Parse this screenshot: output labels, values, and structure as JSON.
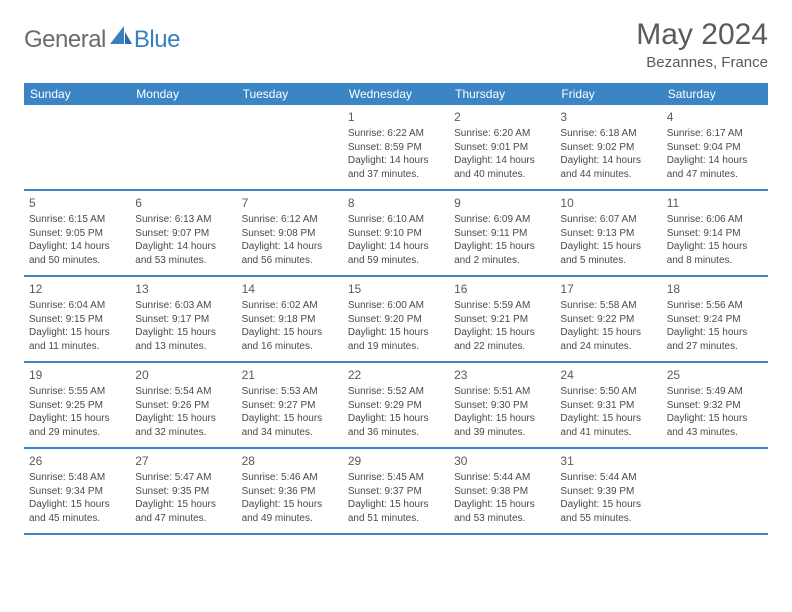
{
  "logo": {
    "general": "General",
    "blue": "Blue"
  },
  "title": "May 2024",
  "location": "Bezannes, France",
  "colors": {
    "header_bg": "#3b85c4",
    "header_text": "#ffffff",
    "divider": "#3b85c4",
    "body_text": "#4a4a4a",
    "title_text": "#5a5a5a",
    "logo_gray": "#6b6b6b",
    "logo_blue": "#3a7fbf"
  },
  "weekdays": [
    "Sunday",
    "Monday",
    "Tuesday",
    "Wednesday",
    "Thursday",
    "Friday",
    "Saturday"
  ],
  "weeks": [
    [
      {
        "n": "",
        "sr": "",
        "ss": "",
        "dl1": "",
        "dl2": ""
      },
      {
        "n": "",
        "sr": "",
        "ss": "",
        "dl1": "",
        "dl2": ""
      },
      {
        "n": "",
        "sr": "",
        "ss": "",
        "dl1": "",
        "dl2": ""
      },
      {
        "n": "1",
        "sr": "Sunrise: 6:22 AM",
        "ss": "Sunset: 8:59 PM",
        "dl1": "Daylight: 14 hours",
        "dl2": "and 37 minutes."
      },
      {
        "n": "2",
        "sr": "Sunrise: 6:20 AM",
        "ss": "Sunset: 9:01 PM",
        "dl1": "Daylight: 14 hours",
        "dl2": "and 40 minutes."
      },
      {
        "n": "3",
        "sr": "Sunrise: 6:18 AM",
        "ss": "Sunset: 9:02 PM",
        "dl1": "Daylight: 14 hours",
        "dl2": "and 44 minutes."
      },
      {
        "n": "4",
        "sr": "Sunrise: 6:17 AM",
        "ss": "Sunset: 9:04 PM",
        "dl1": "Daylight: 14 hours",
        "dl2": "and 47 minutes."
      }
    ],
    [
      {
        "n": "5",
        "sr": "Sunrise: 6:15 AM",
        "ss": "Sunset: 9:05 PM",
        "dl1": "Daylight: 14 hours",
        "dl2": "and 50 minutes."
      },
      {
        "n": "6",
        "sr": "Sunrise: 6:13 AM",
        "ss": "Sunset: 9:07 PM",
        "dl1": "Daylight: 14 hours",
        "dl2": "and 53 minutes."
      },
      {
        "n": "7",
        "sr": "Sunrise: 6:12 AM",
        "ss": "Sunset: 9:08 PM",
        "dl1": "Daylight: 14 hours",
        "dl2": "and 56 minutes."
      },
      {
        "n": "8",
        "sr": "Sunrise: 6:10 AM",
        "ss": "Sunset: 9:10 PM",
        "dl1": "Daylight: 14 hours",
        "dl2": "and 59 minutes."
      },
      {
        "n": "9",
        "sr": "Sunrise: 6:09 AM",
        "ss": "Sunset: 9:11 PM",
        "dl1": "Daylight: 15 hours",
        "dl2": "and 2 minutes."
      },
      {
        "n": "10",
        "sr": "Sunrise: 6:07 AM",
        "ss": "Sunset: 9:13 PM",
        "dl1": "Daylight: 15 hours",
        "dl2": "and 5 minutes."
      },
      {
        "n": "11",
        "sr": "Sunrise: 6:06 AM",
        "ss": "Sunset: 9:14 PM",
        "dl1": "Daylight: 15 hours",
        "dl2": "and 8 minutes."
      }
    ],
    [
      {
        "n": "12",
        "sr": "Sunrise: 6:04 AM",
        "ss": "Sunset: 9:15 PM",
        "dl1": "Daylight: 15 hours",
        "dl2": "and 11 minutes."
      },
      {
        "n": "13",
        "sr": "Sunrise: 6:03 AM",
        "ss": "Sunset: 9:17 PM",
        "dl1": "Daylight: 15 hours",
        "dl2": "and 13 minutes."
      },
      {
        "n": "14",
        "sr": "Sunrise: 6:02 AM",
        "ss": "Sunset: 9:18 PM",
        "dl1": "Daylight: 15 hours",
        "dl2": "and 16 minutes."
      },
      {
        "n": "15",
        "sr": "Sunrise: 6:00 AM",
        "ss": "Sunset: 9:20 PM",
        "dl1": "Daylight: 15 hours",
        "dl2": "and 19 minutes."
      },
      {
        "n": "16",
        "sr": "Sunrise: 5:59 AM",
        "ss": "Sunset: 9:21 PM",
        "dl1": "Daylight: 15 hours",
        "dl2": "and 22 minutes."
      },
      {
        "n": "17",
        "sr": "Sunrise: 5:58 AM",
        "ss": "Sunset: 9:22 PM",
        "dl1": "Daylight: 15 hours",
        "dl2": "and 24 minutes."
      },
      {
        "n": "18",
        "sr": "Sunrise: 5:56 AM",
        "ss": "Sunset: 9:24 PM",
        "dl1": "Daylight: 15 hours",
        "dl2": "and 27 minutes."
      }
    ],
    [
      {
        "n": "19",
        "sr": "Sunrise: 5:55 AM",
        "ss": "Sunset: 9:25 PM",
        "dl1": "Daylight: 15 hours",
        "dl2": "and 29 minutes."
      },
      {
        "n": "20",
        "sr": "Sunrise: 5:54 AM",
        "ss": "Sunset: 9:26 PM",
        "dl1": "Daylight: 15 hours",
        "dl2": "and 32 minutes."
      },
      {
        "n": "21",
        "sr": "Sunrise: 5:53 AM",
        "ss": "Sunset: 9:27 PM",
        "dl1": "Daylight: 15 hours",
        "dl2": "and 34 minutes."
      },
      {
        "n": "22",
        "sr": "Sunrise: 5:52 AM",
        "ss": "Sunset: 9:29 PM",
        "dl1": "Daylight: 15 hours",
        "dl2": "and 36 minutes."
      },
      {
        "n": "23",
        "sr": "Sunrise: 5:51 AM",
        "ss": "Sunset: 9:30 PM",
        "dl1": "Daylight: 15 hours",
        "dl2": "and 39 minutes."
      },
      {
        "n": "24",
        "sr": "Sunrise: 5:50 AM",
        "ss": "Sunset: 9:31 PM",
        "dl1": "Daylight: 15 hours",
        "dl2": "and 41 minutes."
      },
      {
        "n": "25",
        "sr": "Sunrise: 5:49 AM",
        "ss": "Sunset: 9:32 PM",
        "dl1": "Daylight: 15 hours",
        "dl2": "and 43 minutes."
      }
    ],
    [
      {
        "n": "26",
        "sr": "Sunrise: 5:48 AM",
        "ss": "Sunset: 9:34 PM",
        "dl1": "Daylight: 15 hours",
        "dl2": "and 45 minutes."
      },
      {
        "n": "27",
        "sr": "Sunrise: 5:47 AM",
        "ss": "Sunset: 9:35 PM",
        "dl1": "Daylight: 15 hours",
        "dl2": "and 47 minutes."
      },
      {
        "n": "28",
        "sr": "Sunrise: 5:46 AM",
        "ss": "Sunset: 9:36 PM",
        "dl1": "Daylight: 15 hours",
        "dl2": "and 49 minutes."
      },
      {
        "n": "29",
        "sr": "Sunrise: 5:45 AM",
        "ss": "Sunset: 9:37 PM",
        "dl1": "Daylight: 15 hours",
        "dl2": "and 51 minutes."
      },
      {
        "n": "30",
        "sr": "Sunrise: 5:44 AM",
        "ss": "Sunset: 9:38 PM",
        "dl1": "Daylight: 15 hours",
        "dl2": "and 53 minutes."
      },
      {
        "n": "31",
        "sr": "Sunrise: 5:44 AM",
        "ss": "Sunset: 9:39 PM",
        "dl1": "Daylight: 15 hours",
        "dl2": "and 55 minutes."
      },
      {
        "n": "",
        "sr": "",
        "ss": "",
        "dl1": "",
        "dl2": ""
      }
    ]
  ]
}
